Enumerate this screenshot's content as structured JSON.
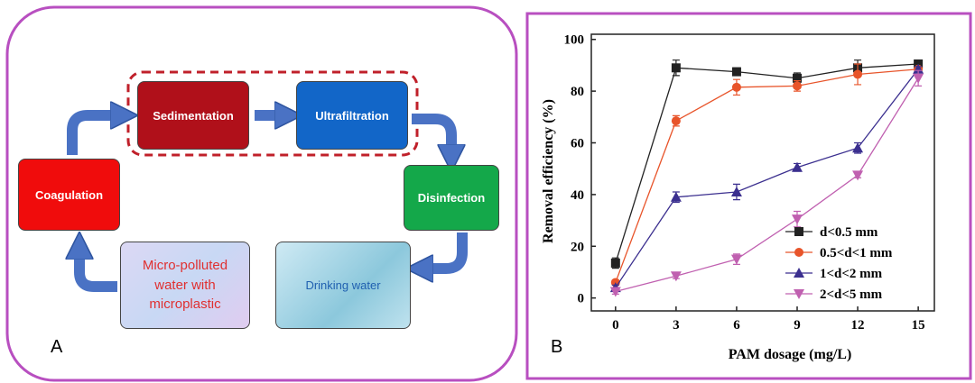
{
  "panels": {
    "a": "A",
    "b": "B"
  },
  "diagram": {
    "nodes": [
      {
        "label": "Coagulation"
      },
      {
        "label": "Sedimentation"
      },
      {
        "label": "Ultrafiltration"
      },
      {
        "label": "Disinfection"
      },
      {
        "label": "Drinking water"
      },
      {
        "label": "Micro-polluted water with microplastic"
      }
    ]
  },
  "chart_data": {
    "type": "line",
    "x_label": "PAM dosage (mg/L)",
    "y_label": "Removal efficiency (%)",
    "x": [
      0,
      3,
      6,
      9,
      12,
      15
    ],
    "series": [
      {
        "name": "d<0.5 mm",
        "color": "#222222",
        "marker": "square",
        "values": [
          13.5,
          89,
          87.5,
          85,
          89,
          90.5
        ],
        "errors": [
          2,
          3,
          1.5,
          2,
          3,
          1
        ]
      },
      {
        "name": "0.5<d<1 mm",
        "color": "#e8542a",
        "marker": "circle",
        "values": [
          6,
          68.5,
          81.5,
          82,
          86.5,
          88.5
        ],
        "errors": [
          1,
          2,
          3,
          2,
          4,
          1
        ]
      },
      {
        "name": "1<d<2 mm",
        "color": "#3b2f8f",
        "marker": "triangle-up",
        "values": [
          4,
          39,
          41,
          50.5,
          58,
          88.5
        ],
        "errors": [
          1,
          2,
          3,
          1.5,
          2,
          1
        ]
      },
      {
        "name": "2<d<5 mm",
        "color": "#c060b0",
        "marker": "triangle-down",
        "values": [
          2.5,
          8.5,
          15,
          30.5,
          47.5,
          85
        ],
        "errors": [
          1,
          1,
          2,
          3,
          1,
          3
        ]
      }
    ],
    "xlim": [
      -1.2,
      15.8
    ],
    "xticks": [
      0,
      3,
      6,
      9,
      12,
      15
    ],
    "ylim": [
      -5,
      102
    ],
    "yticks": [
      0,
      20,
      40,
      60,
      80,
      100
    ],
    "legend": "lower right"
  }
}
